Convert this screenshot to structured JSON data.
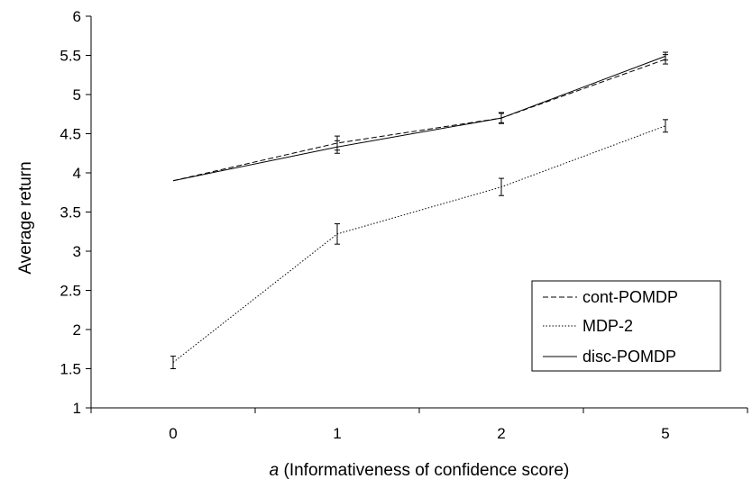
{
  "chart_data": {
    "type": "line",
    "categories": [
      "0",
      "1",
      "2",
      "5"
    ],
    "xlabel_italic": "a",
    "xlabel_rest": " (Informativeness of confidence score)",
    "ylabel": "Average return",
    "ylim": [
      1,
      6
    ],
    "yticks": [
      "1",
      "1.5",
      "2",
      "2.5",
      "3",
      "3.5",
      "4",
      "4.5",
      "5",
      "5.5",
      "6"
    ],
    "grid": false,
    "legend_position": "bottom-right",
    "series": [
      {
        "name": "cont-POMDP",
        "style": "dashed",
        "values": [
          3.9,
          4.38,
          4.7,
          5.45
        ],
        "errors": [
          0.0,
          0.09,
          0.07,
          0.06
        ]
      },
      {
        "name": "MDP-2",
        "style": "dotted",
        "values": [
          1.58,
          3.22,
          3.82,
          4.6
        ],
        "errors": [
          0.08,
          0.13,
          0.11,
          0.08
        ]
      },
      {
        "name": "disc-POMDP",
        "style": "solid",
        "values": [
          3.9,
          4.33,
          4.7,
          5.49
        ],
        "errors": [
          0.0,
          0.08,
          0.06,
          0.05
        ]
      }
    ]
  }
}
